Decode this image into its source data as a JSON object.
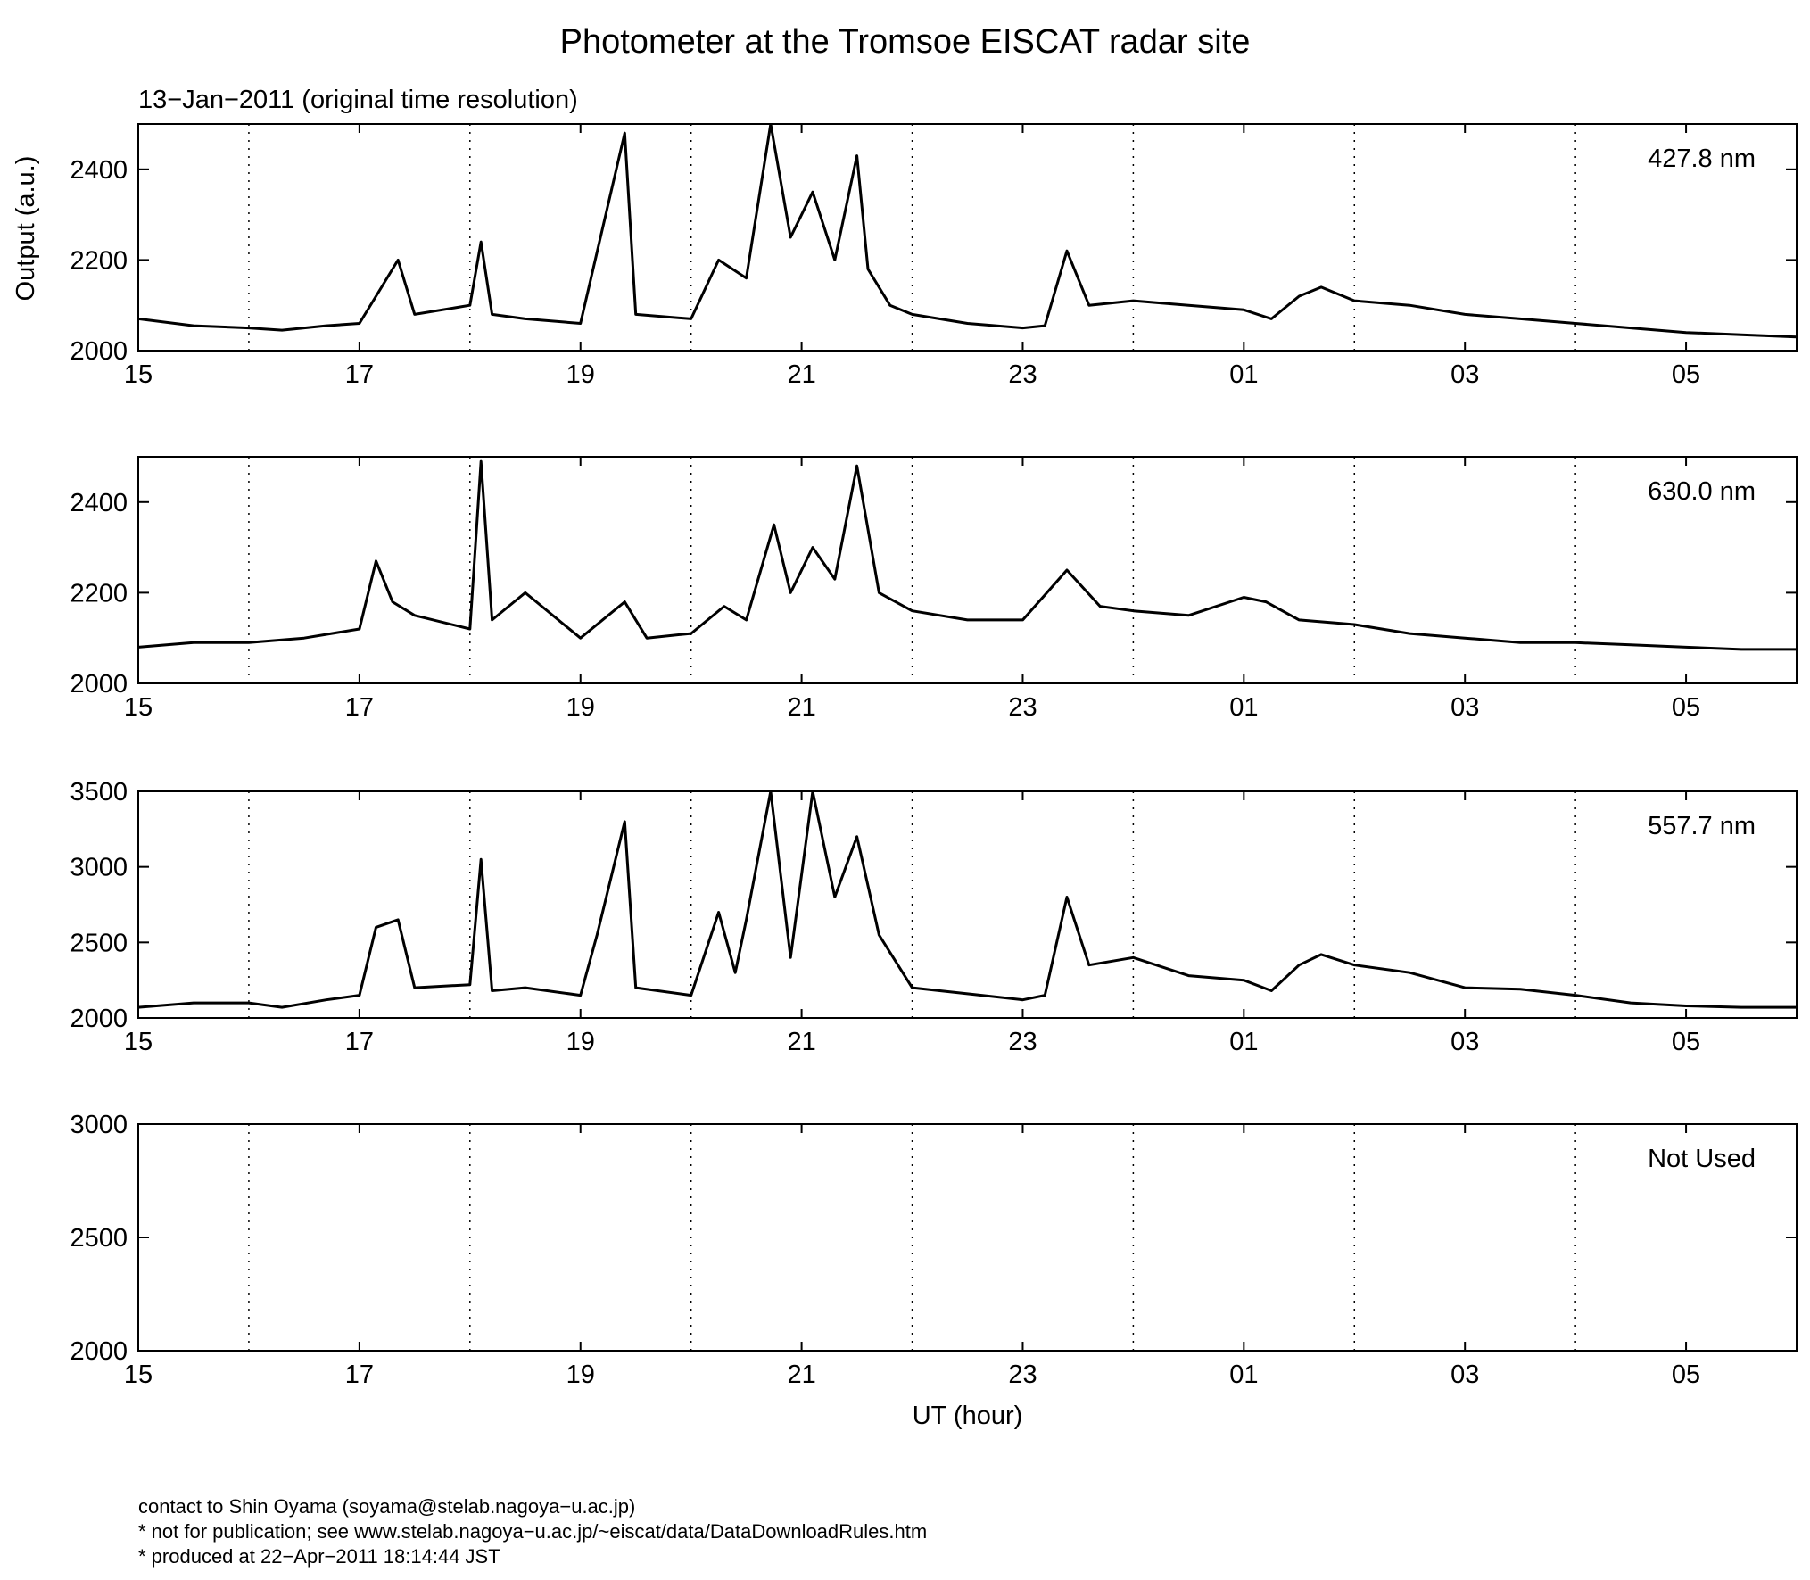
{
  "header": {
    "title": "Photometer at the Tromsoe EISCAT radar site",
    "date_label": "13−Jan−2011 (original time resolution)"
  },
  "footer": {
    "contact": "contact to Shin Oyama (soyama@stelab.nagoya−u.ac.jp)",
    "notice": "* not for publication; see www.stelab.nagoya−u.ac.jp/~eiscat/data/DataDownloadRules.htm",
    "produced": "* produced at 22−Apr−2011 18:14:44 JST"
  },
  "chart_data": [
    {
      "type": "line",
      "series": [
        {
          "name": "427.8 nm",
          "x": [
            15,
            15.5,
            16,
            16.3,
            16.7,
            17,
            17.2,
            17.35,
            17.5,
            18,
            18.1,
            18.2,
            18.5,
            19,
            19.4,
            19.5,
            20,
            20.25,
            20.5,
            20.72,
            20.9,
            21.1,
            21.3,
            21.5,
            21.6,
            21.8,
            22,
            22.5,
            23,
            23.2,
            23.4,
            23.6,
            24,
            24.5,
            25,
            25.25,
            25.5,
            25.7,
            26,
            26.5,
            27,
            27.5,
            28,
            28.5,
            29,
            29.5,
            30
          ],
          "y": [
            2070,
            2055,
            2050,
            2045,
            2055,
            2060,
            2140,
            2200,
            2080,
            2100,
            2240,
            2080,
            2070,
            2060,
            2480,
            2080,
            2070,
            2200,
            2160,
            2500,
            2250,
            2350,
            2200,
            2430,
            2180,
            2100,
            2080,
            2060,
            2050,
            2055,
            2220,
            2100,
            2110,
            2100,
            2090,
            2070,
            2120,
            2140,
            2110,
            2100,
            2080,
            2070,
            2060,
            2050,
            2040,
            2035,
            2030
          ]
        }
      ],
      "xticks": [
        "15",
        "17",
        "19",
        "21",
        "23",
        "01",
        "03",
        "05"
      ],
      "xlim": [
        15,
        30
      ],
      "yticks": [
        "2000",
        "2200",
        "2400"
      ],
      "ylim": [
        2000,
        2500
      ],
      "ylabel": "Output (a.u.)",
      "annotation": "427.8 nm",
      "grid": "dotted vertical at odd-hour boundaries"
    },
    {
      "type": "line",
      "series": [
        {
          "name": "630.0 nm",
          "x": [
            15,
            15.5,
            16,
            16.5,
            17,
            17.15,
            17.3,
            17.5,
            18,
            18.1,
            18.2,
            18.5,
            19,
            19.4,
            19.6,
            20,
            20.3,
            20.5,
            20.75,
            20.9,
            21.1,
            21.3,
            21.5,
            21.7,
            22,
            22.5,
            23,
            23.4,
            23.7,
            24,
            24.5,
            25,
            25.2,
            25.5,
            26,
            26.5,
            27,
            27.5,
            28,
            28.5,
            29,
            29.5,
            30
          ],
          "y": [
            2080,
            2090,
            2090,
            2100,
            2120,
            2270,
            2180,
            2150,
            2120,
            2490,
            2140,
            2200,
            2100,
            2180,
            2100,
            2110,
            2170,
            2140,
            2350,
            2200,
            2300,
            2230,
            2480,
            2200,
            2160,
            2140,
            2140,
            2250,
            2170,
            2160,
            2150,
            2190,
            2180,
            2140,
            2130,
            2110,
            2100,
            2090,
            2090,
            2085,
            2080,
            2075,
            2075
          ]
        }
      ],
      "xticks": [
        "15",
        "17",
        "19",
        "21",
        "23",
        "01",
        "03",
        "05"
      ],
      "xlim": [
        15,
        30
      ],
      "yticks": [
        "2000",
        "2200",
        "2400"
      ],
      "ylim": [
        2000,
        2500
      ],
      "annotation": "630.0 nm",
      "grid": "dotted vertical at odd-hour boundaries"
    },
    {
      "type": "line",
      "series": [
        {
          "name": "557.7 nm",
          "x": [
            15,
            15.5,
            16,
            16.3,
            16.7,
            17,
            17.15,
            17.35,
            17.5,
            18,
            18.1,
            18.2,
            18.5,
            19,
            19.15,
            19.4,
            19.5,
            20,
            20.25,
            20.4,
            20.5,
            20.72,
            20.9,
            21.1,
            21.3,
            21.5,
            21.7,
            22,
            22.5,
            23,
            23.2,
            23.4,
            23.6,
            24,
            24.5,
            25,
            25.25,
            25.5,
            25.7,
            26,
            26.5,
            27,
            27.5,
            28,
            28.5,
            29,
            29.5,
            30
          ],
          "y": [
            2070,
            2100,
            2100,
            2070,
            2120,
            2150,
            2600,
            2650,
            2200,
            2220,
            3050,
            2180,
            2200,
            2150,
            2550,
            3300,
            2200,
            2150,
            2700,
            2300,
            2650,
            3500,
            2400,
            3500,
            2800,
            3200,
            2550,
            2200,
            2160,
            2120,
            2150,
            2800,
            2350,
            2400,
            2280,
            2250,
            2180,
            2350,
            2420,
            2350,
            2300,
            2200,
            2190,
            2150,
            2100,
            2080,
            2070,
            2070
          ]
        }
      ],
      "xticks": [
        "15",
        "17",
        "19",
        "21",
        "23",
        "01",
        "03",
        "05"
      ],
      "xlim": [
        15,
        30
      ],
      "yticks": [
        "2000",
        "2500",
        "3000",
        "3500"
      ],
      "ylim": [
        2000,
        3500
      ],
      "annotation": "557.7 nm",
      "grid": "dotted vertical at odd-hour boundaries"
    },
    {
      "type": "line",
      "series": [],
      "xticks": [
        "15",
        "17",
        "19",
        "21",
        "23",
        "01",
        "03",
        "05"
      ],
      "xlim": [
        15,
        30
      ],
      "yticks": [
        "2000",
        "2500",
        "3000"
      ],
      "ylim": [
        2000,
        3000
      ],
      "xlabel": "UT (hour)",
      "annotation": "Not Used",
      "grid": "dotted vertical at odd-hour boundaries"
    }
  ]
}
